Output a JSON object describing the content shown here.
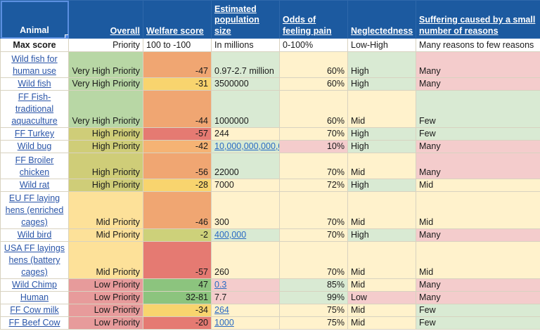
{
  "colors": {
    "header_bg": "#1c5aa0",
    "priority_very_high": "#b8d7a5",
    "priority_high": "#cfcd78",
    "priority_mid": "#fde199",
    "priority_low": "#e79b9b",
    "green": "#8cc47e",
    "yellow_green": "#cdd17a",
    "yellow": "#f8d46e",
    "orange": "#f0a672",
    "red": "#e57a72",
    "light_green": "#d9ead3",
    "light_yellow": "#fff2cc",
    "light_red": "#f4cccc"
  },
  "headers": {
    "animal": "Animal",
    "overall": "Overall",
    "welfare": "Welfare score",
    "population": "Estimated population size",
    "pain": "Odds of feeling pain",
    "neglectedness": "Neglectedness",
    "suffering": "Suffering caused by a small number of reasons"
  },
  "max_score": {
    "animal": "Max score",
    "overall": "Priority",
    "welfare": "100 to -100",
    "population": "In millions",
    "pain": "0-100%",
    "neglectedness": "Low-High",
    "suffering": "Many reasons to few reasons"
  },
  "rows": [
    {
      "animal": "Wild fish for human use",
      "overall": "Very High Priority",
      "welfare": "-47",
      "population": "0.97-2.7 million",
      "population_link": false,
      "pain": "60%",
      "neglectedness": "High",
      "suffering": "Many",
      "colors": {
        "overall": "#b8d7a5",
        "welfare": "#f0a672",
        "population": "#d9ead3",
        "pain": "#fff2cc",
        "neglectedness": "#d9ead3",
        "suffering": "#f4cccc"
      }
    },
    {
      "animal": "Wild fish",
      "overall": "Very High Priority",
      "welfare": "-31",
      "population": "3500000",
      "population_link": false,
      "pain": "60%",
      "neglectedness": "High",
      "suffering": "Many",
      "colors": {
        "overall": "#b8d7a5",
        "welfare": "#f8d46e",
        "population": "#d9ead3",
        "pain": "#fff2cc",
        "neglectedness": "#d9ead3",
        "suffering": "#f4cccc"
      }
    },
    {
      "animal": "FF Fish-traditional aquaculture",
      "overall": "Very High Priority",
      "welfare": "-44",
      "population": "1000000",
      "population_link": false,
      "pain": "60%",
      "neglectedness": "Mid",
      "suffering": "Few",
      "colors": {
        "overall": "#b8d7a5",
        "welfare": "#f0a672",
        "population": "#d9ead3",
        "pain": "#fff2cc",
        "neglectedness": "#fff2cc",
        "suffering": "#d9ead3"
      }
    },
    {
      "animal": "FF Turkey",
      "overall": "High Priority",
      "welfare": "-57",
      "population": "244",
      "population_link": false,
      "pain": "70%",
      "neglectedness": "High",
      "suffering": "Few",
      "colors": {
        "overall": "#cfcd78",
        "welfare": "#e57a72",
        "population": "#fff2cc",
        "pain": "#fff2cc",
        "neglectedness": "#d9ead3",
        "suffering": "#d9ead3"
      }
    },
    {
      "animal": "Wild bug",
      "overall": "High Priority",
      "welfare": "-42",
      "population": "10,000,000,000,000",
      "population_link": true,
      "pain": "10%",
      "neglectedness": "High",
      "suffering": "Many",
      "colors": {
        "overall": "#cfcd78",
        "welfare": "#f5b374",
        "population": "#d9ead3",
        "pain": "#f4cccc",
        "neglectedness": "#d9ead3",
        "suffering": "#f4cccc"
      }
    },
    {
      "animal": "FF Broiler chicken",
      "overall": "High Priority",
      "welfare": "-56",
      "population": "22000",
      "population_link": false,
      "pain": "70%",
      "neglectedness": "Mid",
      "suffering": "Many",
      "colors": {
        "overall": "#cfcd78",
        "welfare": "#f0a672",
        "population": "#d9ead3",
        "pain": "#fff2cc",
        "neglectedness": "#fff2cc",
        "suffering": "#f4cccc"
      }
    },
    {
      "animal": "Wild rat",
      "overall": "High Priority",
      "welfare": "-28",
      "population": "7000",
      "population_link": false,
      "pain": "72%",
      "neglectedness": "High",
      "suffering": "Mid",
      "colors": {
        "overall": "#cfcd78",
        "welfare": "#f8d46e",
        "population": "#fff2cc",
        "pain": "#fff2cc",
        "neglectedness": "#d9ead3",
        "suffering": "#fff2cc"
      }
    },
    {
      "animal": "EU FF laying hens (enriched cages)",
      "overall": "Mid Priority",
      "welfare": "-46",
      "population": "300",
      "population_link": false,
      "pain": "70%",
      "neglectedness": "Mid",
      "suffering": "Mid",
      "colors": {
        "overall": "#fde199",
        "welfare": "#f0a672",
        "population": "#fff2cc",
        "pain": "#fff2cc",
        "neglectedness": "#fff2cc",
        "suffering": "#fff2cc"
      }
    },
    {
      "animal": "Wild bird",
      "overall": "Mid Priority",
      "welfare": "-2",
      "population": "400,000",
      "population_link": true,
      "pain": "70%",
      "neglectedness": "High",
      "suffering": "Many",
      "colors": {
        "overall": "#fde199",
        "welfare": "#cdd17a",
        "population": "#d9ead3",
        "pain": "#fff2cc",
        "neglectedness": "#d9ead3",
        "suffering": "#f4cccc"
      }
    },
    {
      "animal": "USA FF layings hens (battery cages)",
      "overall": "Mid Priority",
      "welfare": "-57",
      "population": "260",
      "population_link": false,
      "pain": "70%",
      "neglectedness": "Mid",
      "suffering": "Mid",
      "colors": {
        "overall": "#fde199",
        "welfare": "#e57a72",
        "population": "#fff2cc",
        "pain": "#fff2cc",
        "neglectedness": "#fff2cc",
        "suffering": "#fff2cc"
      }
    },
    {
      "animal": "Wild Chimp",
      "overall": "Low Priority",
      "welfare": "47",
      "population": "0.3",
      "population_link": true,
      "pain": "85%",
      "neglectedness": "Mid",
      "suffering": "Many",
      "colors": {
        "overall": "#e79b9b",
        "welfare": "#8cc47e",
        "population": "#f4cccc",
        "pain": "#d9ead3",
        "neglectedness": "#fff2cc",
        "suffering": "#f4cccc"
      }
    },
    {
      "animal": "Human",
      "overall": "Low Priority",
      "welfare": "32-81",
      "population": "7.7",
      "population_link": false,
      "pain": "99%",
      "neglectedness": "Low",
      "suffering": "Many",
      "colors": {
        "overall": "#e79b9b",
        "welfare": "#8cc47e",
        "population": "#f4cccc",
        "pain": "#d9ead3",
        "neglectedness": "#f4cccc",
        "suffering": "#f4cccc"
      }
    },
    {
      "animal": "FF Cow milk",
      "overall": "Low Priority",
      "welfare": "-34",
      "population": "264",
      "population_link": true,
      "pain": "75%",
      "neglectedness": "Mid",
      "suffering": "Few",
      "colors": {
        "overall": "#e79b9b",
        "welfare": "#f8d46e",
        "population": "#fff2cc",
        "pain": "#fff2cc",
        "neglectedness": "#fff2cc",
        "suffering": "#d9ead3"
      }
    },
    {
      "animal": "FF Beef Cow",
      "overall": "Low Priority",
      "welfare": "-20",
      "population": "1000",
      "population_link": true,
      "pain": "75%",
      "neglectedness": "Mid",
      "suffering": "Few",
      "colors": {
        "overall": "#e79b9b",
        "welfare": "#e57a72",
        "population": "#fff2cc",
        "pain": "#fff2cc",
        "neglectedness": "#fff2cc",
        "suffering": "#d9ead3"
      }
    }
  ]
}
